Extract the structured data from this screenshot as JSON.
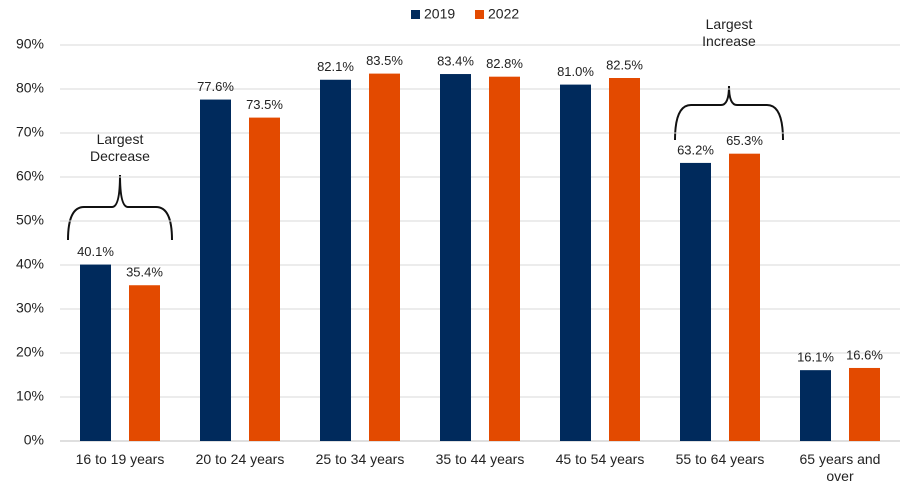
{
  "chart_data": {
    "type": "bar",
    "categories": [
      "16 to 19 years",
      "20 to 24 years",
      "25 to 34 years",
      "35 to 44 years",
      "45 to 54 years",
      "55 to 64 years",
      "65 years and over"
    ],
    "series": [
      {
        "name": "2019",
        "color": "#002a5c",
        "values": [
          40.1,
          77.6,
          82.1,
          83.4,
          81.0,
          63.2,
          16.1
        ],
        "value_labels": [
          "40.1%",
          "77.6%",
          "82.1%",
          "83.4%",
          "81.0%",
          "63.2%",
          "16.1%"
        ]
      },
      {
        "name": "2022",
        "color": "#e34a00",
        "values": [
          35.4,
          73.5,
          83.5,
          82.8,
          82.5,
          65.3,
          16.6
        ],
        "value_labels": [
          "35.4%",
          "73.5%",
          "83.5%",
          "82.8%",
          "82.5%",
          "65.3%",
          "16.6%"
        ]
      }
    ],
    "ylim": [
      0,
      90
    ],
    "yticks": [
      {
        "value": 0,
        "label": "0%"
      },
      {
        "value": 10,
        "label": "10%"
      },
      {
        "value": 20,
        "label": "20%"
      },
      {
        "value": 30,
        "label": "30%"
      },
      {
        "value": 40,
        "label": "40%"
      },
      {
        "value": 50,
        "label": "50%"
      },
      {
        "value": 60,
        "label": "60%"
      },
      {
        "value": 70,
        "label": "70%"
      },
      {
        "value": 80,
        "label": "80%"
      },
      {
        "value": 90,
        "label": "90%"
      }
    ],
    "grid": true,
    "legend": "top",
    "annotations": [
      {
        "text": "Largest Decrease"
      },
      {
        "text": "Largest Increase"
      }
    ]
  }
}
